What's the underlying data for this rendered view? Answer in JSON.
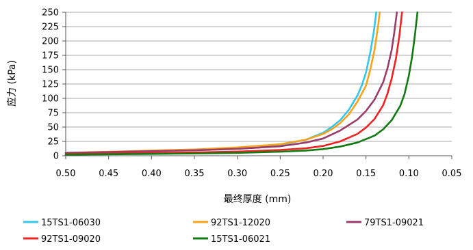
{
  "chart_data": {
    "type": "line",
    "title": "",
    "xlabel": "最终厚度 (mm)",
    "ylabel": "应力 (kPa)",
    "xlim": [
      0.5,
      0.05
    ],
    "ylim": [
      0,
      250
    ],
    "x_reversed": true,
    "x_ticks": [
      "0.50",
      "0.45",
      "0.40",
      "0.35",
      "0.30",
      "0.25",
      "0.20",
      "0.15",
      "0.10",
      "0.05"
    ],
    "y_ticks": [
      "0",
      "25",
      "50",
      "75",
      "100",
      "125",
      "150",
      "175",
      "200",
      "225",
      "250"
    ],
    "grid": "horizontal",
    "legend_position": "bottom",
    "series": [
      {
        "name": "15TS1-06030",
        "color": "#33c6ea",
        "points": [
          [
            0.5,
            5
          ],
          [
            0.45,
            6.5
          ],
          [
            0.4,
            8
          ],
          [
            0.35,
            10
          ],
          [
            0.3,
            13
          ],
          [
            0.25,
            19
          ],
          [
            0.22,
            28
          ],
          [
            0.2,
            40
          ],
          [
            0.19,
            50
          ],
          [
            0.18,
            62
          ],
          [
            0.17,
            80
          ],
          [
            0.16,
            105
          ],
          [
            0.155,
            122
          ],
          [
            0.15,
            145
          ],
          [
            0.145,
            180
          ],
          [
            0.141,
            215
          ],
          [
            0.138,
            250
          ]
        ]
      },
      {
        "name": "92TS1-12020",
        "color": "#f7a21c",
        "points": [
          [
            0.5,
            5
          ],
          [
            0.45,
            7
          ],
          [
            0.4,
            9
          ],
          [
            0.35,
            11
          ],
          [
            0.3,
            14.5
          ],
          [
            0.25,
            20
          ],
          [
            0.22,
            28
          ],
          [
            0.2,
            38
          ],
          [
            0.19,
            46
          ],
          [
            0.18,
            57
          ],
          [
            0.17,
            72
          ],
          [
            0.16,
            94
          ],
          [
            0.15,
            122
          ],
          [
            0.145,
            150
          ],
          [
            0.14,
            185
          ],
          [
            0.136,
            225
          ],
          [
            0.134,
            250
          ]
        ]
      },
      {
        "name": "79TS1-09021",
        "color": "#9b3b6a",
        "points": [
          [
            0.5,
            5
          ],
          [
            0.45,
            6.5
          ],
          [
            0.4,
            8
          ],
          [
            0.35,
            9.5
          ],
          [
            0.3,
            12
          ],
          [
            0.25,
            16.5
          ],
          [
            0.22,
            23
          ],
          [
            0.2,
            30
          ],
          [
            0.18,
            44
          ],
          [
            0.16,
            63
          ],
          [
            0.15,
            78
          ],
          [
            0.14,
            98
          ],
          [
            0.13,
            128
          ],
          [
            0.125,
            152
          ],
          [
            0.12,
            185
          ],
          [
            0.117,
            215
          ],
          [
            0.114,
            250
          ]
        ]
      },
      {
        "name": "92TS1-09020",
        "color": "#ee2222",
        "points": [
          [
            0.5,
            3
          ],
          [
            0.45,
            4
          ],
          [
            0.4,
            4.8
          ],
          [
            0.35,
            5.8
          ],
          [
            0.3,
            7.2
          ],
          [
            0.25,
            10
          ],
          [
            0.22,
            13
          ],
          [
            0.2,
            17
          ],
          [
            0.18,
            25
          ],
          [
            0.16,
            38
          ],
          [
            0.15,
            49
          ],
          [
            0.14,
            64
          ],
          [
            0.13,
            88
          ],
          [
            0.125,
            108
          ],
          [
            0.12,
            135
          ],
          [
            0.115,
            170
          ],
          [
            0.111,
            210
          ],
          [
            0.108,
            250
          ]
        ]
      },
      {
        "name": "15TS1-06021",
        "color": "#117a11",
        "points": [
          [
            0.5,
            2
          ],
          [
            0.45,
            2.6
          ],
          [
            0.4,
            3.2
          ],
          [
            0.35,
            3.9
          ],
          [
            0.3,
            5
          ],
          [
            0.25,
            7
          ],
          [
            0.22,
            9
          ],
          [
            0.2,
            11.5
          ],
          [
            0.18,
            16
          ],
          [
            0.16,
            23
          ],
          [
            0.14,
            35
          ],
          [
            0.13,
            46
          ],
          [
            0.12,
            62
          ],
          [
            0.11,
            87
          ],
          [
            0.105,
            108
          ],
          [
            0.1,
            140
          ],
          [
            0.096,
            175
          ],
          [
            0.093,
            210
          ],
          [
            0.09,
            250
          ]
        ]
      }
    ]
  }
}
